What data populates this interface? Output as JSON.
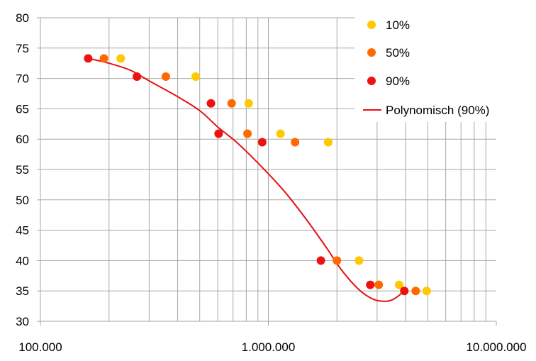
{
  "chart_data": {
    "type": "scatter",
    "title": "",
    "xlabel": "",
    "ylabel": "",
    "x_scale": "log",
    "xlim": [
      100000,
      10000000
    ],
    "ylim": [
      30,
      80
    ],
    "grid": true,
    "legend_position": "top-right",
    "x_tick_labels": [
      "100.000",
      "1.000.000",
      "10.000.000"
    ],
    "x_tick_values": [
      100000,
      1000000,
      10000000
    ],
    "y_ticks": [
      30,
      35,
      40,
      45,
      50,
      55,
      60,
      65,
      70,
      75,
      80
    ],
    "series": [
      {
        "name": "10%",
        "kind": "scatter",
        "color": "#FFC800",
        "points": [
          {
            "x": 225000,
            "y": 73.3
          },
          {
            "x": 480000,
            "y": 70.3
          },
          {
            "x": 820000,
            "y": 65.9
          },
          {
            "x": 1130000,
            "y": 60.9
          },
          {
            "x": 1830000,
            "y": 59.5
          },
          {
            "x": 2500000,
            "y": 40.0
          },
          {
            "x": 3750000,
            "y": 36.0
          },
          {
            "x": 4950000,
            "y": 35.0
          }
        ]
      },
      {
        "name": "50%",
        "kind": "scatter",
        "color": "#FF6A00",
        "points": [
          {
            "x": 190000,
            "y": 73.3
          },
          {
            "x": 355000,
            "y": 70.3
          },
          {
            "x": 690000,
            "y": 65.9
          },
          {
            "x": 810000,
            "y": 60.9
          },
          {
            "x": 1310000,
            "y": 59.5
          },
          {
            "x": 2000000,
            "y": 40.0
          },
          {
            "x": 3050000,
            "y": 36.0
          },
          {
            "x": 4430000,
            "y": 35.0
          }
        ]
      },
      {
        "name": "90%",
        "kind": "scatter",
        "color": "#EE1111",
        "points": [
          {
            "x": 162000,
            "y": 73.3
          },
          {
            "x": 265000,
            "y": 70.3
          },
          {
            "x": 560000,
            "y": 65.9
          },
          {
            "x": 605000,
            "y": 60.9
          },
          {
            "x": 940000,
            "y": 59.5
          },
          {
            "x": 1700000,
            "y": 40.0
          },
          {
            "x": 2800000,
            "y": 36.0
          },
          {
            "x": 3950000,
            "y": 35.0
          }
        ]
      },
      {
        "name": "Polynomisch (90%)",
        "kind": "trendline",
        "color": "#E81010",
        "points": [
          {
            "x": 162000,
            "y": 73.3
          },
          {
            "x": 200000,
            "y": 72.5
          },
          {
            "x": 250000,
            "y": 71.3
          },
          {
            "x": 300000,
            "y": 69.6
          },
          {
            "x": 400000,
            "y": 67.0
          },
          {
            "x": 500000,
            "y": 64.7
          },
          {
            "x": 600000,
            "y": 62.0
          },
          {
            "x": 700000,
            "y": 60.0
          },
          {
            "x": 800000,
            "y": 58.0
          },
          {
            "x": 1000000,
            "y": 54.3
          },
          {
            "x": 1200000,
            "y": 51.0
          },
          {
            "x": 1500000,
            "y": 46.3
          },
          {
            "x": 1800000,
            "y": 42.1
          },
          {
            "x": 2100000,
            "y": 38.4
          },
          {
            "x": 2500000,
            "y": 35.2
          },
          {
            "x": 2900000,
            "y": 33.6
          },
          {
            "x": 3300000,
            "y": 33.3
          },
          {
            "x": 3600000,
            "y": 33.8
          },
          {
            "x": 3950000,
            "y": 35.0
          }
        ]
      }
    ]
  }
}
